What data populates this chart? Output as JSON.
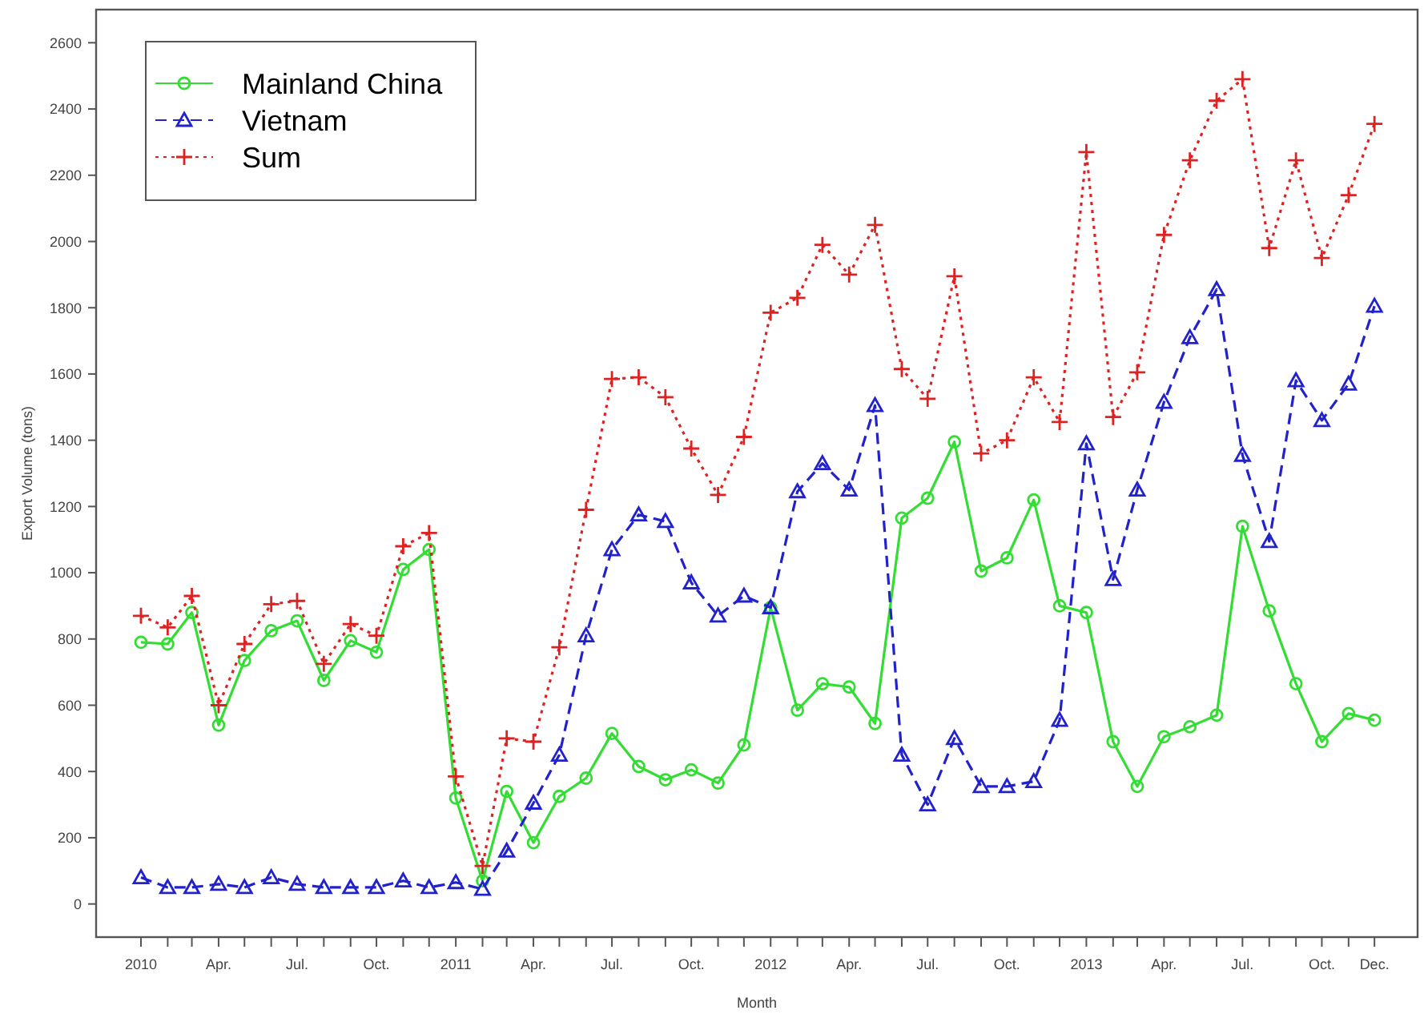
{
  "chart_data": {
    "type": "line",
    "xlabel": "Month",
    "ylabel": "Export Volume (tons)",
    "x": [
      "2010-01",
      "2010-02",
      "2010-03",
      "2010-04",
      "2010-05",
      "2010-06",
      "2010-07",
      "2010-08",
      "2010-09",
      "2010-10",
      "2010-11",
      "2010-12",
      "2011-01",
      "2011-02",
      "2011-03",
      "2011-04",
      "2011-05",
      "2011-06",
      "2011-07",
      "2011-08",
      "2011-09",
      "2011-10",
      "2011-11",
      "2011-12",
      "2012-01",
      "2012-02",
      "2012-03",
      "2012-04",
      "2012-05",
      "2012-06",
      "2012-07",
      "2012-08",
      "2012-09",
      "2012-10",
      "2012-11",
      "2012-12",
      "2013-01",
      "2013-02",
      "2013-03",
      "2013-04",
      "2013-05",
      "2013-06",
      "2013-07",
      "2013-08",
      "2013-09",
      "2013-10",
      "2013-11",
      "2013-12"
    ],
    "series": [
      {
        "name": "Mainland China",
        "color": "#33dd33",
        "marker": "circle",
        "line_style": "solid",
        "values": [
          790,
          785,
          880,
          540,
          735,
          825,
          855,
          675,
          795,
          760,
          1010,
          1070,
          320,
          70,
          340,
          185,
          325,
          380,
          515,
          415,
          375,
          405,
          365,
          480,
          895,
          585,
          665,
          655,
          545,
          1165,
          1225,
          1395,
          1005,
          1045,
          1220,
          900,
          880,
          490,
          355,
          505,
          535,
          570,
          1140,
          885,
          665,
          490,
          575,
          555
        ]
      },
      {
        "name": "Vietnam",
        "color": "#2222cc",
        "marker": "triangle",
        "line_style": "dashed",
        "values": [
          80,
          50,
          50,
          60,
          50,
          80,
          60,
          50,
          50,
          50,
          70,
          50,
          65,
          45,
          160,
          305,
          450,
          810,
          1070,
          1175,
          1155,
          970,
          870,
          930,
          895,
          1245,
          1330,
          1250,
          1505,
          450,
          300,
          500,
          355,
          355,
          370,
          555,
          1390,
          980,
          1250,
          1515,
          1710,
          1855,
          1355,
          1095,
          1580,
          1460,
          1570,
          1805
        ]
      },
      {
        "name": "Sum",
        "color": "#dd2222",
        "marker": "cross",
        "line_style": "dotted",
        "values": [
          870,
          835,
          930,
          600,
          785,
          905,
          915,
          725,
          845,
          810,
          1080,
          1120,
          385,
          115,
          500,
          490,
          775,
          1190,
          1585,
          1590,
          1530,
          1375,
          1235,
          1410,
          1785,
          1830,
          1990,
          1900,
          2050,
          1615,
          1525,
          1895,
          1360,
          1400,
          1590,
          1455,
          2270,
          1470,
          1605,
          2020,
          2245,
          2425,
          2490,
          1980,
          2245,
          1950,
          2140,
          2355
        ]
      }
    ],
    "xlim": [
      "2009-11-10",
      "2014-01-20"
    ],
    "xticks": [
      {
        "value": "2010-01",
        "label": "2010"
      },
      {
        "value": "2010-02",
        "label": null
      },
      {
        "value": "2010-03",
        "label": null
      },
      {
        "value": "2010-04",
        "label": "Apr."
      },
      {
        "value": "2010-05",
        "label": null
      },
      {
        "value": "2010-06",
        "label": null
      },
      {
        "value": "2010-07",
        "label": "Jul."
      },
      {
        "value": "2010-08",
        "label": null
      },
      {
        "value": "2010-09",
        "label": null
      },
      {
        "value": "2010-10",
        "label": "Oct."
      },
      {
        "value": "2010-11",
        "label": null
      },
      {
        "value": "2010-12",
        "label": null
      },
      {
        "value": "2011-01",
        "label": "2011"
      },
      {
        "value": "2011-02",
        "label": null
      },
      {
        "value": "2011-03",
        "label": null
      },
      {
        "value": "2011-04",
        "label": "Apr."
      },
      {
        "value": "2011-05",
        "label": null
      },
      {
        "value": "2011-06",
        "label": null
      },
      {
        "value": "2011-07",
        "label": "Jul."
      },
      {
        "value": "2011-08",
        "label": null
      },
      {
        "value": "2011-09",
        "label": null
      },
      {
        "value": "2011-10",
        "label": "Oct."
      },
      {
        "value": "2011-11",
        "label": null
      },
      {
        "value": "2011-12",
        "label": null
      },
      {
        "value": "2012-01",
        "label": "2012"
      },
      {
        "value": "2012-02",
        "label": null
      },
      {
        "value": "2012-03",
        "label": null
      },
      {
        "value": "2012-04",
        "label": "Apr."
      },
      {
        "value": "2012-05",
        "label": null
      },
      {
        "value": "2012-06",
        "label": null
      },
      {
        "value": "2012-07",
        "label": "Jul."
      },
      {
        "value": "2012-08",
        "label": null
      },
      {
        "value": "2012-09",
        "label": null
      },
      {
        "value": "2012-10",
        "label": "Oct."
      },
      {
        "value": "2012-11",
        "label": null
      },
      {
        "value": "2012-12",
        "label": null
      },
      {
        "value": "2013-01",
        "label": "2013"
      },
      {
        "value": "2013-02",
        "label": null
      },
      {
        "value": "2013-03",
        "label": null
      },
      {
        "value": "2013-04",
        "label": "Apr."
      },
      {
        "value": "2013-05",
        "label": null
      },
      {
        "value": "2013-06",
        "label": null
      },
      {
        "value": "2013-07",
        "label": "Jul."
      },
      {
        "value": "2013-08",
        "label": null
      },
      {
        "value": "2013-09",
        "label": null
      },
      {
        "value": "2013-10",
        "label": "Oct."
      },
      {
        "value": "2013-11",
        "label": null
      },
      {
        "value": "2013-12",
        "label": "Dec."
      }
    ],
    "ylim": [
      -100,
      2700
    ],
    "yticks": [
      0,
      200,
      400,
      600,
      800,
      1000,
      1200,
      1400,
      1600,
      1800,
      2000,
      2200,
      2400,
      2600
    ],
    "grid": false,
    "legend": "top left"
  }
}
